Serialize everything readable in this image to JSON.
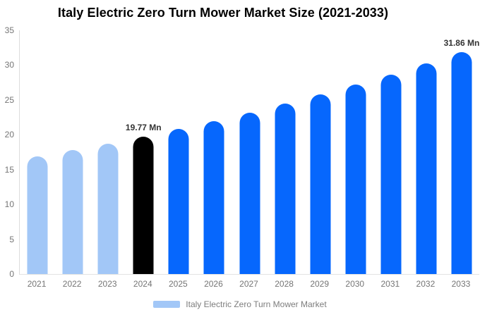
{
  "title": "Italy Electric Zero Turn Mower Market Size (2021-2033)",
  "chart_data": {
    "type": "bar",
    "title": "Italy Electric Zero Turn Mower Market Size (2021-2033)",
    "categories": [
      "2021",
      "2022",
      "2023",
      "2024",
      "2025",
      "2026",
      "2027",
      "2028",
      "2029",
      "2030",
      "2031",
      "2032",
      "2033"
    ],
    "values": [
      16.86,
      17.78,
      18.75,
      19.77,
      20.85,
      21.98,
      23.18,
      24.44,
      25.77,
      27.18,
      28.66,
      30.22,
      31.86
    ],
    "unit": "Mn",
    "point_labels": [
      "",
      "",
      "",
      "19.77 Mn",
      "",
      "",
      "",
      "",
      "",
      "",
      "",
      "",
      "31.86 Mn"
    ],
    "bar_colors": [
      "#a2c7f7",
      "#a2c7f7",
      "#a2c7f7",
      "#000000",
      "#0667fd",
      "#0667fd",
      "#0667fd",
      "#0667fd",
      "#0667fd",
      "#0667fd",
      "#0667fd",
      "#0667fd",
      "#0667fd"
    ],
    "ylim": [
      0,
      35
    ],
    "yticks": [
      0,
      5,
      10,
      15,
      20,
      25,
      30,
      35
    ],
    "grid": false,
    "legend_position": "bottom",
    "legend": [
      {
        "label": "Italy Electric Zero Turn Mower Market",
        "color": "#a2c7f7"
      }
    ]
  },
  "colors": {
    "axis_line": "#dcdcdc",
    "baseline": "#e3e3e3",
    "tick_label": "#757575",
    "point_label": "#333333",
    "title_text": "#000000",
    "background": "#ffffff"
  }
}
